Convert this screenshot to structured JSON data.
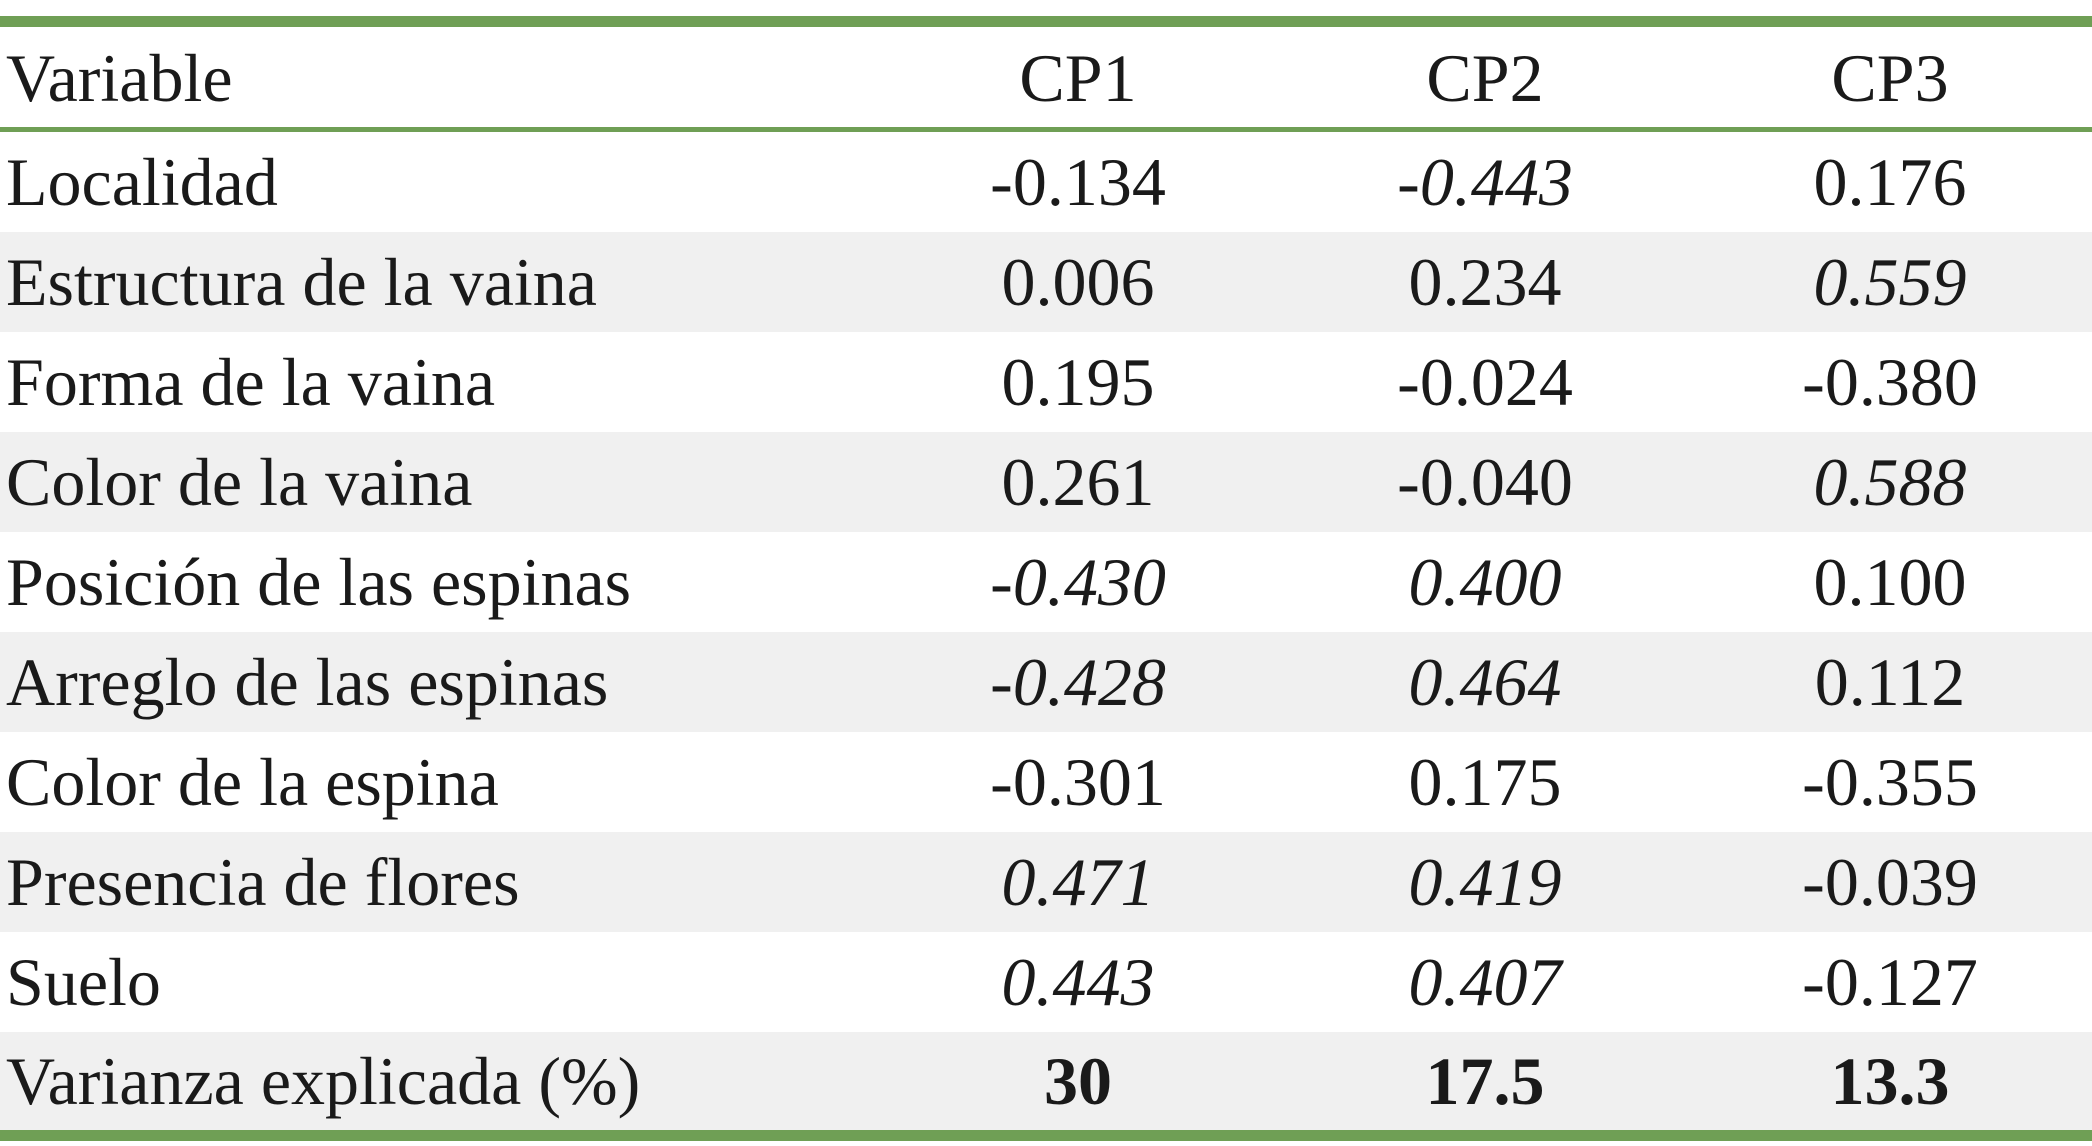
{
  "table": {
    "header": [
      "Variable",
      "CP1",
      "CP2",
      "CP3"
    ],
    "rows": [
      [
        "Localidad",
        "-0.134",
        {
          "value": "-0.443",
          "italic": true
        },
        "0.176"
      ],
      [
        "Estructura de la vaina",
        "0.006",
        "0.234",
        {
          "value": "0.559",
          "italic": true
        }
      ],
      [
        "Forma de la vaina",
        "0.195",
        "-0.024",
        "-0.380"
      ],
      [
        "Color de la vaina",
        "0.261",
        "-0.040",
        {
          "value": "0.588",
          "italic": true
        }
      ],
      [
        "Posición de las espinas",
        {
          "value": "-0.430",
          "italic": true
        },
        {
          "value": "0.400",
          "italic": true
        },
        "0.100"
      ],
      [
        "Arreglo de las espinas",
        {
          "value": "-0.428",
          "italic": true
        },
        {
          "value": "0.464",
          "italic": true
        },
        "0.112"
      ],
      [
        "Color de la espina",
        "-0.301",
        "0.175",
        "-0.355"
      ],
      [
        "Presencia de flores",
        {
          "value": "0.471",
          "italic": true
        },
        {
          "value": "0.419",
          "italic": true
        },
        "-0.039"
      ],
      [
        "Suelo",
        {
          "value": "0.443",
          "italic": true
        },
        {
          "value": "0.407",
          "italic": true
        },
        "-0.127"
      ]
    ],
    "footer": [
      "Varianza explicada (%)",
      "30",
      "17.5",
      "13.3"
    ]
  }
}
